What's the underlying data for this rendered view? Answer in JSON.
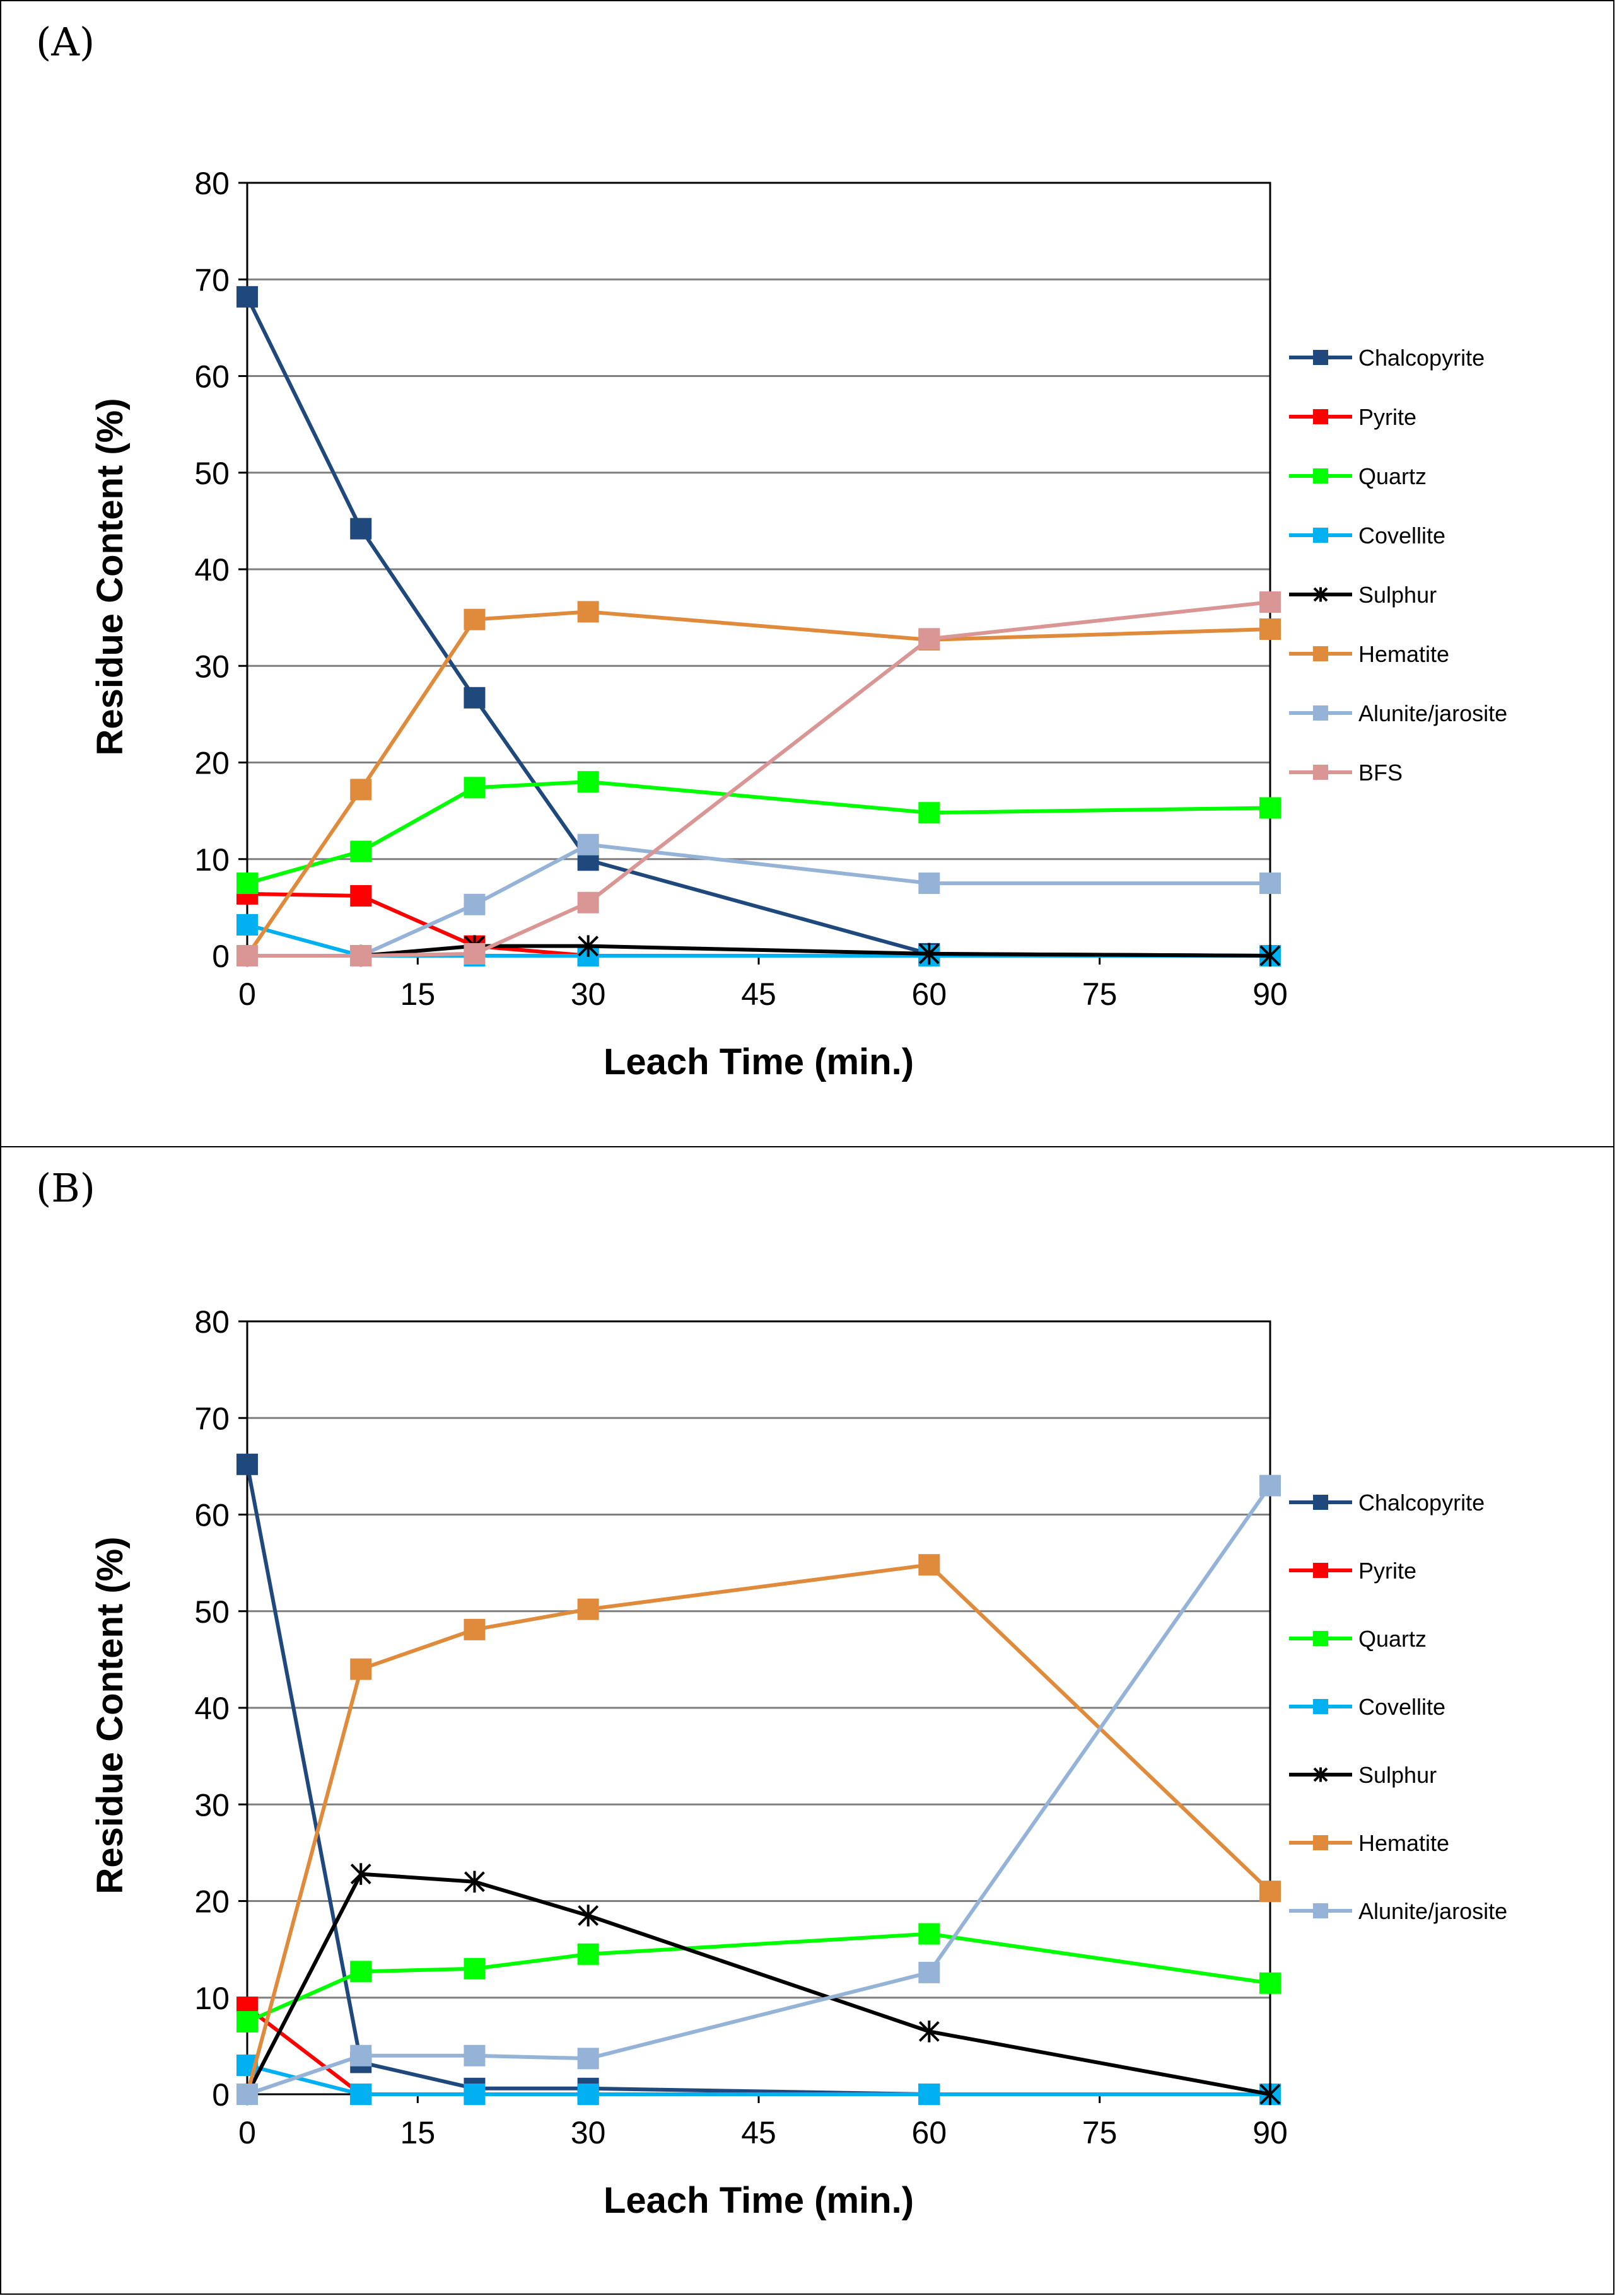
{
  "chart_data": [
    {
      "panel_label": "(A)",
      "type": "line",
      "xlabel": "Leach Time (min.)",
      "ylabel": "Residue Content (%)",
      "xlim": [
        0,
        90
      ],
      "ylim": [
        0,
        80
      ],
      "xticks": [
        0,
        15,
        30,
        45,
        60,
        75,
        90
      ],
      "yticks": [
        0,
        10,
        20,
        30,
        40,
        50,
        60,
        70,
        80
      ],
      "grid": true,
      "legend_position": "right",
      "x": [
        0,
        10,
        20,
        30,
        60,
        90
      ],
      "series": [
        {
          "name": "Chalcopyrite",
          "color": "#1F497D",
          "marker": "square",
          "values": [
            68.2,
            44.2,
            26.7,
            9.9,
            0.2,
            0
          ]
        },
        {
          "name": "Pyrite",
          "color": "#FF0000",
          "marker": "square",
          "values": [
            6.4,
            6.2,
            1.0,
            0,
            0,
            0
          ]
        },
        {
          "name": "Quartz",
          "color": "#00FF00",
          "marker": "square",
          "values": [
            7.5,
            10.8,
            17.4,
            18.0,
            14.8,
            15.3
          ]
        },
        {
          "name": "Covellite",
          "color": "#00B0F0",
          "marker": "square",
          "values": [
            3.2,
            0,
            0,
            0,
            0,
            0
          ]
        },
        {
          "name": "Sulphur",
          "color": "#000000",
          "marker": "star",
          "values": [
            0,
            0,
            1.0,
            1.0,
            0.2,
            0
          ]
        },
        {
          "name": "Hematite",
          "color": "#E08A3C",
          "marker": "square",
          "values": [
            0,
            17.2,
            34.8,
            35.6,
            32.7,
            33.8
          ]
        },
        {
          "name": "Alunite/jarosite",
          "color": "#95B3D7",
          "marker": "square",
          "values": [
            0,
            0,
            5.3,
            11.5,
            7.5,
            7.5
          ]
        },
        {
          "name": "BFS",
          "color": "#D99694",
          "marker": "square",
          "values": [
            0,
            0,
            0.2,
            5.5,
            32.8,
            36.6
          ]
        }
      ]
    },
    {
      "panel_label": "(B)",
      "type": "line",
      "xlabel": "Leach Time (min.)",
      "ylabel": "Residue Content (%)",
      "xlim": [
        0,
        90
      ],
      "ylim": [
        0,
        80
      ],
      "xticks": [
        0,
        15,
        30,
        45,
        60,
        75,
        90
      ],
      "yticks": [
        0,
        10,
        20,
        30,
        40,
        50,
        60,
        70,
        80
      ],
      "grid": true,
      "legend_position": "right",
      "x": [
        0,
        10,
        20,
        30,
        60,
        90
      ],
      "series": [
        {
          "name": "Chalcopyrite",
          "color": "#1F497D",
          "marker": "square",
          "values": [
            65.2,
            3.3,
            0.6,
            0.6,
            0,
            0
          ]
        },
        {
          "name": "Pyrite",
          "color": "#FF0000",
          "marker": "square",
          "values": [
            9.0,
            0,
            0,
            0,
            0,
            0
          ]
        },
        {
          "name": "Quartz",
          "color": "#00FF00",
          "marker": "square",
          "values": [
            7.5,
            12.7,
            13.0,
            14.5,
            16.6,
            11.5
          ]
        },
        {
          "name": "Covellite",
          "color": "#00B0F0",
          "marker": "square",
          "values": [
            3.0,
            0,
            0,
            0,
            0,
            0
          ]
        },
        {
          "name": "Sulphur",
          "color": "#000000",
          "marker": "star",
          "values": [
            0,
            22.8,
            22.0,
            18.5,
            6.5,
            0
          ]
        },
        {
          "name": "Hematite",
          "color": "#E08A3C",
          "marker": "square",
          "values": [
            0,
            44.0,
            48.1,
            50.2,
            54.8,
            21.0
          ]
        },
        {
          "name": "Alunite/jarosite",
          "color": "#95B3D7",
          "marker": "square",
          "values": [
            0,
            4.0,
            4.0,
            3.7,
            12.6,
            63.0
          ]
        }
      ]
    }
  ]
}
